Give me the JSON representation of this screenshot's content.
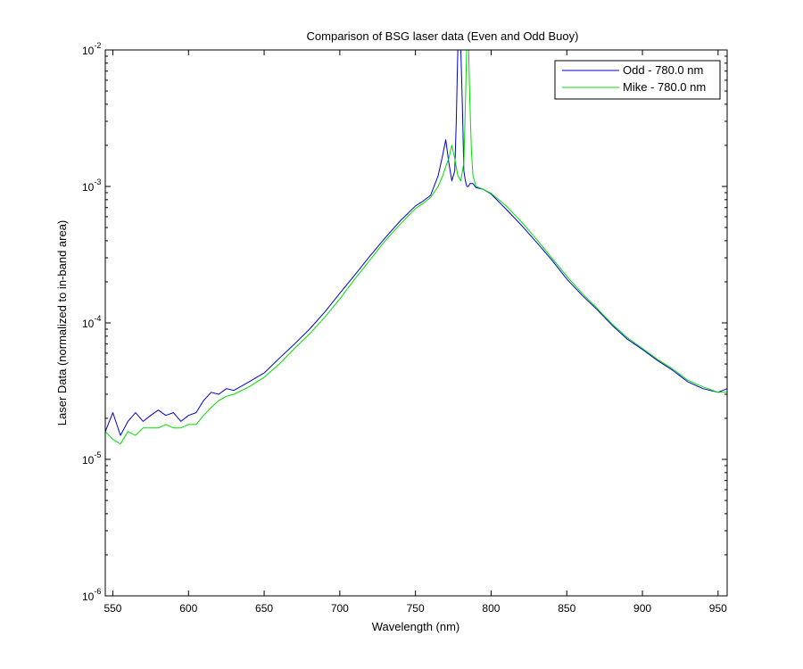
{
  "chart_data": {
    "type": "line",
    "title": "Comparison of BSG laser data (Even and Odd Buoy)",
    "xlabel": "Wavelength (nm)",
    "ylabel": "Laser Data (normalized to in-band area)",
    "xlim": [
      545,
      956
    ],
    "ylim": [
      1e-06,
      0.01
    ],
    "yscale": "log",
    "xticks": [
      550,
      600,
      650,
      700,
      750,
      800,
      850,
      900,
      950
    ],
    "yticks": [
      {
        "value": 1e-06,
        "base": "10",
        "exp": "-6"
      },
      {
        "value": 1e-05,
        "base": "10",
        "exp": "-5"
      },
      {
        "value": 0.0001,
        "base": "10",
        "exp": "-4"
      },
      {
        "value": 0.001,
        "base": "10",
        "exp": "-3"
      },
      {
        "value": 0.01,
        "base": "10",
        "exp": "-2"
      }
    ],
    "grid": false,
    "legend_position": "top-right",
    "series": [
      {
        "name": "Odd - 780.0 nm",
        "color": "#0000cc",
        "x": [
          545,
          550,
          555,
          560,
          565,
          570,
          575,
          580,
          585,
          590,
          595,
          600,
          605,
          610,
          615,
          620,
          625,
          630,
          640,
          650,
          660,
          670,
          680,
          690,
          700,
          710,
          720,
          730,
          740,
          750,
          755,
          760,
          765,
          768,
          770,
          772,
          774,
          776,
          777,
          778,
          779,
          780,
          781,
          782,
          783,
          784,
          785,
          786,
          788,
          790,
          795,
          800,
          810,
          820,
          830,
          840,
          850,
          860,
          870,
          880,
          890,
          900,
          910,
          920,
          930,
          940,
          950,
          956
        ],
        "y": [
          1.6e-05,
          2.2e-05,
          1.5e-05,
          1.9e-05,
          2.2e-05,
          1.9e-05,
          2.1e-05,
          2.3e-05,
          2.1e-05,
          2.2e-05,
          1.9e-05,
          2.1e-05,
          2.2e-05,
          2.7e-05,
          3.1e-05,
          3e-05,
          3.3e-05,
          3.2e-05,
          3.7e-05,
          4.3e-05,
          5.5e-05,
          7e-05,
          9e-05,
          0.00012,
          0.000165,
          0.000225,
          0.00031,
          0.00042,
          0.00056,
          0.00072,
          0.00078,
          0.00086,
          0.0012,
          0.0017,
          0.0022,
          0.0015,
          0.0011,
          0.0013,
          0.003,
          0.01,
          0.015,
          0.01,
          0.004,
          0.0013,
          0.0011,
          0.001,
          0.001,
          0.00105,
          0.00105,
          0.00098,
          0.00095,
          0.00088,
          0.00068,
          0.00052,
          0.00039,
          0.00029,
          0.00021,
          0.00016,
          0.000125,
          9.6e-05,
          7.6e-05,
          6.4e-05,
          5.3e-05,
          4.5e-05,
          3.7e-05,
          3.3e-05,
          3.1e-05,
          3.3e-05
        ]
      },
      {
        "name": "Mike - 780.0 nm",
        "color": "#00dd00",
        "x": [
          545,
          550,
          555,
          560,
          565,
          570,
          575,
          580,
          585,
          590,
          595,
          600,
          605,
          610,
          615,
          620,
          625,
          630,
          640,
          650,
          660,
          670,
          680,
          690,
          700,
          710,
          720,
          730,
          740,
          750,
          755,
          760,
          765,
          768,
          770,
          772,
          774,
          776,
          778,
          780,
          782,
          783,
          784,
          785,
          786,
          787,
          788,
          790,
          795,
          800,
          810,
          820,
          830,
          840,
          850,
          860,
          870,
          880,
          890,
          900,
          910,
          920,
          930,
          940,
          950,
          956
        ],
        "y": [
          1.6e-05,
          1.4e-05,
          1.3e-05,
          1.6e-05,
          1.5e-05,
          1.7e-05,
          1.7e-05,
          1.7e-05,
          1.8e-05,
          1.7e-05,
          1.7e-05,
          1.8e-05,
          1.8e-05,
          2.1e-05,
          2.4e-05,
          2.7e-05,
          2.9e-05,
          3e-05,
          3.4e-05,
          4e-05,
          5e-05,
          6.5e-05,
          8.3e-05,
          0.00011,
          0.00015,
          0.00021,
          0.00029,
          0.0004,
          0.00053,
          0.00069,
          0.00075,
          0.00083,
          0.001,
          0.0012,
          0.0014,
          0.0016,
          0.002,
          0.0016,
          0.0012,
          0.0011,
          0.0015,
          0.004,
          0.012,
          0.012,
          0.004,
          0.0018,
          0.0012,
          0.001,
          0.00095,
          0.00089,
          0.00072,
          0.00055,
          0.00041,
          0.0003,
          0.00022,
          0.000165,
          0.000128,
          9.8e-05,
          7.8e-05,
          6.5e-05,
          5.4e-05,
          4.6e-05,
          3.8e-05,
          3.4e-05,
          3.1e-05,
          3.1e-05
        ]
      }
    ]
  }
}
